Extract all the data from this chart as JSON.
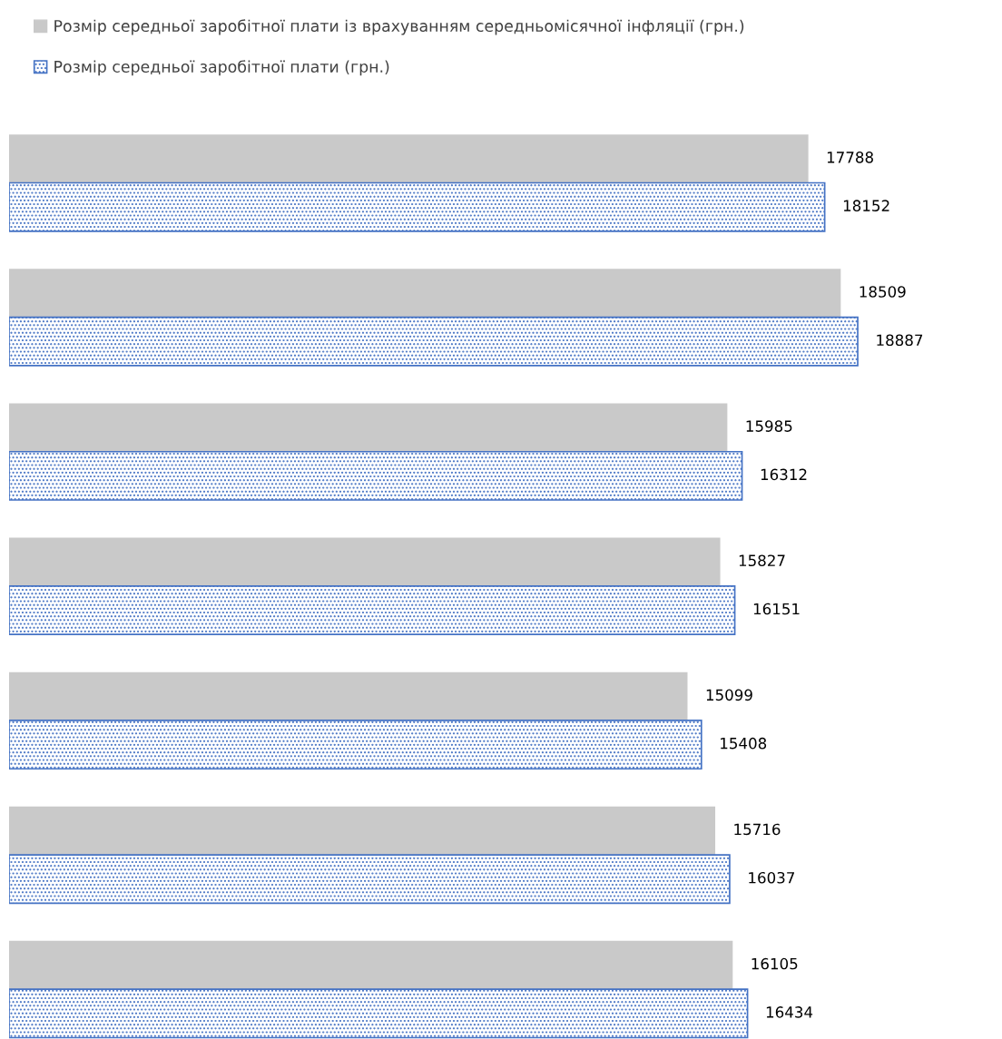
{
  "chart_data": {
    "type": "bar",
    "orientation": "horizontal",
    "categories": [
      null,
      null,
      null,
      null,
      null,
      null,
      null
    ],
    "series": [
      {
        "name": "Розмір середньої заробітної плати із врахуванням середньомісячної інфляції (грн.)",
        "color": "#c9c9c9",
        "values": [
          17788,
          18509,
          15985,
          15827,
          15099,
          15716,
          16105
        ]
      },
      {
        "name": "Розмір середньої заробітної плати (грн.)",
        "color": "#4472c4",
        "values": [
          18152,
          18887,
          16312,
          16151,
          15408,
          16037,
          16434
        ]
      }
    ],
    "data_labels": true,
    "legend": "top left"
  }
}
